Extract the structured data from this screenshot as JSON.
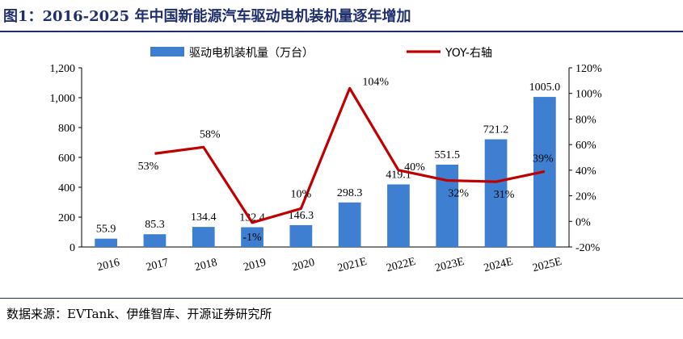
{
  "title": "图1：2016-2025 年中国新能源汽车驱动电机装机量逐年增加",
  "source": "数据来源：EVTank、伊维智库、开源证券研究所",
  "colors": {
    "bar": "#3f7fd1",
    "line": "#c00000",
    "title": "#1f2f6e"
  },
  "chart_data": {
    "type": "bar+line",
    "categories": [
      "2016",
      "2017",
      "2018",
      "2019",
      "2020",
      "2021E",
      "2022E",
      "2023E",
      "2024E",
      "2025E"
    ],
    "series": [
      {
        "name": "驱动电机装机量（万台）",
        "type": "bar",
        "axis": "left",
        "values": [
          55.9,
          85.3,
          134.4,
          132.4,
          146.3,
          298.3,
          419.1,
          551.5,
          721.2,
          1005.0
        ],
        "labels": [
          "55.9",
          "85.3",
          "134.4",
          "132.4",
          "146.3",
          "298.3",
          "419.1",
          "551.5",
          "721.2",
          "1005.0"
        ]
      },
      {
        "name": "YOY-右轴",
        "type": "line",
        "axis": "right",
        "values": [
          null,
          53,
          58,
          -1,
          10,
          104,
          40,
          32,
          31,
          39
        ],
        "labels": [
          "",
          "53%",
          "58%",
          "-1%",
          "10%",
          "104%",
          "40%",
          "32%",
          "31%",
          "39%"
        ]
      }
    ],
    "y_left": {
      "range": [
        0,
        1200
      ],
      "ticks": [
        "0",
        "200",
        "400",
        "600",
        "800",
        "1,000",
        "1,200"
      ]
    },
    "y_right": {
      "range": [
        -20,
        120
      ],
      "ticks": [
        "-20%",
        "0%",
        "20%",
        "40%",
        "60%",
        "80%",
        "100%",
        "120%"
      ]
    },
    "legend": "top",
    "grid": false
  }
}
